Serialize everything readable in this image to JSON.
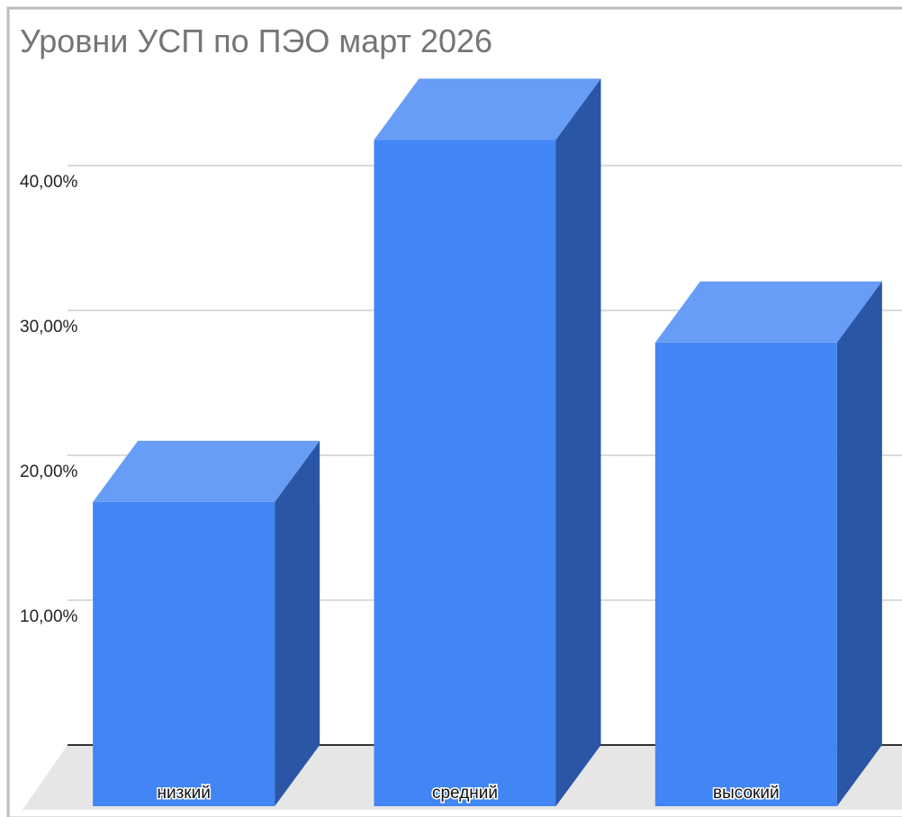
{
  "chart_data": {
    "type": "bar3d",
    "title": "Уровни УСП по ПЭО март 2026",
    "categories": [
      "низкий",
      "средний",
      "высокий"
    ],
    "values": [
      21,
      46,
      32
    ],
    "color": "#4285f4",
    "ylim": [
      0,
      50
    ],
    "yticks": [
      {
        "value": 10,
        "label": "10,00%"
      },
      {
        "value": 20,
        "label": "20,00%"
      },
      {
        "value": 30,
        "label": "30,00%"
      },
      {
        "value": 40,
        "label": "40,00%"
      }
    ],
    "grid": true
  }
}
